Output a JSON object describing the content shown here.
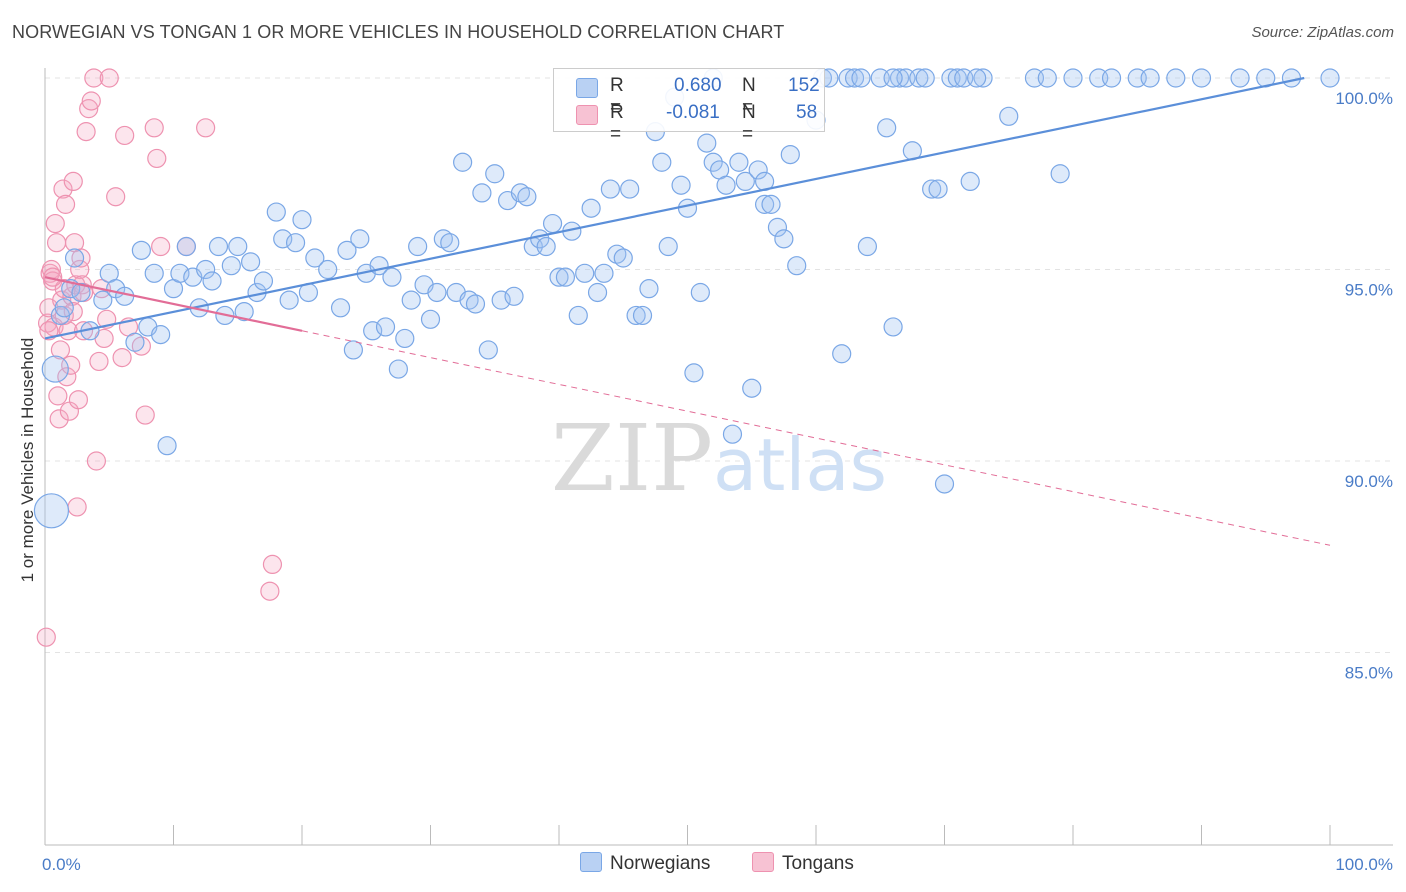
{
  "title": "NORWEGIAN VS TONGAN 1 OR MORE VEHICLES IN HOUSEHOLD CORRELATION CHART",
  "source": "Source: ZipAtlas.com",
  "watermark": {
    "zip": "ZIP",
    "atlas": "atlas"
  },
  "legend": {
    "r_label": "R =",
    "n_label": "N =",
    "rows": [
      {
        "name": "Norwegians",
        "r": "0.680",
        "n": "152",
        "color": "#7aa7e6",
        "fill": "#b9d1f3"
      },
      {
        "name": "Tongans",
        "r": "-0.081",
        "n": "58",
        "color": "#ee92b0",
        "fill": "#f7c2d3"
      }
    ]
  },
  "chart_data": {
    "type": "scatter",
    "xlabel": "",
    "ylabel": "1 or more Vehicles in Household",
    "x_tick_labels": [
      "0.0%",
      "100.0%"
    ],
    "y_tick_labels": [
      "100.0%",
      "95.0%",
      "90.0%",
      "85.0%"
    ],
    "y_ticks": [
      100,
      95,
      90,
      85
    ],
    "xlim": [
      0,
      100
    ],
    "ylim": [
      80.5,
      100.5
    ],
    "grid": true,
    "series": [
      {
        "name": "Norwegians",
        "color": "#5b8fd9",
        "trend": {
          "x0": 0.0,
          "y0": 93.2,
          "x1": 98.0,
          "y1": 100.0,
          "dashed_to": null
        },
        "points": [
          [
            0.5,
            88.7,
            3
          ],
          [
            0.8,
            92.4,
            2
          ],
          [
            1.2,
            93.8,
            1
          ],
          [
            1.5,
            94.0,
            1
          ],
          [
            2.0,
            94.5,
            1
          ],
          [
            2.3,
            95.3,
            1
          ],
          [
            2.8,
            94.4,
            1
          ],
          [
            3.5,
            93.4,
            1
          ],
          [
            4.5,
            94.2,
            1
          ],
          [
            5.0,
            94.9,
            1
          ],
          [
            5.5,
            94.5,
            1
          ],
          [
            6.2,
            94.3,
            1
          ],
          [
            7.0,
            93.1,
            1
          ],
          [
            7.5,
            95.5,
            1
          ],
          [
            8.0,
            93.5,
            1
          ],
          [
            8.5,
            94.9,
            1
          ],
          [
            9.0,
            93.3,
            1
          ],
          [
            9.5,
            90.4,
            1
          ],
          [
            10.0,
            94.5,
            1
          ],
          [
            10.5,
            94.9,
            1
          ],
          [
            11.0,
            95.6,
            1
          ],
          [
            11.5,
            94.8,
            1
          ],
          [
            12.0,
            94.0,
            1
          ],
          [
            12.5,
            95.0,
            1
          ],
          [
            13.0,
            94.7,
            1
          ],
          [
            13.5,
            95.6,
            1
          ],
          [
            14.0,
            93.8,
            1
          ],
          [
            14.5,
            95.1,
            1
          ],
          [
            15.0,
            95.6,
            1
          ],
          [
            15.5,
            93.9,
            1
          ],
          [
            16.0,
            95.2,
            1
          ],
          [
            16.5,
            94.4,
            1
          ],
          [
            17.0,
            94.7,
            1
          ],
          [
            18.0,
            96.5,
            1
          ],
          [
            18.5,
            95.8,
            1
          ],
          [
            19.0,
            94.2,
            1
          ],
          [
            19.5,
            95.7,
            1
          ],
          [
            20.0,
            96.3,
            1
          ],
          [
            20.5,
            94.4,
            1
          ],
          [
            21.0,
            95.3,
            1
          ],
          [
            22.0,
            95.0,
            1
          ],
          [
            23.0,
            94.0,
            1
          ],
          [
            23.5,
            95.5,
            1
          ],
          [
            24.0,
            92.9,
            1
          ],
          [
            24.5,
            95.8,
            1
          ],
          [
            25.0,
            94.9,
            1
          ],
          [
            25.5,
            93.4,
            1
          ],
          [
            26.0,
            95.1,
            1
          ],
          [
            26.5,
            93.5,
            1
          ],
          [
            27.0,
            94.8,
            1
          ],
          [
            27.5,
            92.4,
            1
          ],
          [
            28.0,
            93.2,
            1
          ],
          [
            28.5,
            94.2,
            1
          ],
          [
            29.0,
            95.6,
            1
          ],
          [
            29.5,
            94.6,
            1
          ],
          [
            30.0,
            93.7,
            1
          ],
          [
            30.5,
            94.4,
            1
          ],
          [
            31.0,
            95.8,
            1
          ],
          [
            31.5,
            95.7,
            1
          ],
          [
            32.0,
            94.4,
            1
          ],
          [
            32.5,
            97.8,
            1
          ],
          [
            33.0,
            94.2,
            1
          ],
          [
            33.5,
            94.1,
            1
          ],
          [
            34.0,
            97.0,
            1
          ],
          [
            34.5,
            92.9,
            1
          ],
          [
            35.0,
            97.5,
            1
          ],
          [
            35.5,
            94.2,
            1
          ],
          [
            36.0,
            96.8,
            1
          ],
          [
            36.5,
            94.3,
            1
          ],
          [
            37.0,
            97.0,
            1
          ],
          [
            37.5,
            96.9,
            1
          ],
          [
            38.0,
            95.6,
            1
          ],
          [
            38.5,
            95.8,
            1
          ],
          [
            39.0,
            95.6,
            1
          ],
          [
            39.5,
            96.2,
            1
          ],
          [
            40.0,
            94.8,
            1
          ],
          [
            40.5,
            94.8,
            1
          ],
          [
            41.0,
            96.0,
            1
          ],
          [
            41.5,
            93.8,
            1
          ],
          [
            42.0,
            94.9,
            1
          ],
          [
            42.5,
            96.6,
            1
          ],
          [
            43.0,
            94.4,
            1
          ],
          [
            43.5,
            94.9,
            1
          ],
          [
            44.0,
            97.1,
            1
          ],
          [
            44.5,
            95.4,
            1
          ],
          [
            45.0,
            95.3,
            1
          ],
          [
            45.5,
            97.1,
            1
          ],
          [
            46.0,
            93.8,
            1
          ],
          [
            46.5,
            93.8,
            1
          ],
          [
            47.0,
            94.5,
            1
          ],
          [
            47.5,
            98.6,
            1
          ],
          [
            48.0,
            97.8,
            1
          ],
          [
            48.5,
            95.6,
            1
          ],
          [
            49.0,
            99.5,
            1
          ],
          [
            49.5,
            97.2,
            1
          ],
          [
            50.0,
            96.6,
            1
          ],
          [
            50.5,
            92.3,
            1
          ],
          [
            51.0,
            94.4,
            1
          ],
          [
            51.5,
            98.3,
            1
          ],
          [
            52.0,
            97.8,
            1
          ],
          [
            52.5,
            97.6,
            1
          ],
          [
            53.0,
            97.2,
            1
          ],
          [
            53.5,
            90.7,
            1
          ],
          [
            54.0,
            97.8,
            1
          ],
          [
            54.5,
            97.3,
            1
          ],
          [
            55.0,
            91.9,
            1
          ],
          [
            55.5,
            97.6,
            1
          ],
          [
            56.0,
            96.7,
            1
          ],
          [
            56.5,
            96.7,
            1
          ],
          [
            57.0,
            96.1,
            1
          ],
          [
            57.5,
            95.8,
            1
          ],
          [
            58.0,
            98.0,
            1
          ],
          [
            58.5,
            95.1,
            1
          ],
          [
            60.0,
            98.9,
            1
          ],
          [
            60.5,
            100.0,
            1
          ],
          [
            61.0,
            100.0,
            1
          ],
          [
            62.0,
            92.8,
            1
          ],
          [
            62.5,
            100.0,
            1
          ],
          [
            63.0,
            100.0,
            1
          ],
          [
            63.5,
            100.0,
            1
          ],
          [
            64.0,
            95.6,
            1
          ],
          [
            65.0,
            100.0,
            1
          ],
          [
            65.5,
            98.7,
            1
          ],
          [
            66.0,
            93.5,
            1
          ],
          [
            66.5,
            100.0,
            1
          ],
          [
            67.0,
            100.0,
            1
          ],
          [
            67.5,
            98.1,
            1
          ],
          [
            68.0,
            100.0,
            1
          ],
          [
            68.5,
            100.0,
            1
          ],
          [
            69.0,
            97.1,
            1
          ],
          [
            69.5,
            97.1,
            1
          ],
          [
            70.0,
            89.4,
            1
          ],
          [
            70.5,
            100.0,
            1
          ],
          [
            71.0,
            100.0,
            1
          ],
          [
            71.5,
            100.0,
            1
          ],
          [
            72.0,
            97.3,
            1
          ],
          [
            73.0,
            100.0,
            1
          ],
          [
            75.0,
            99.0,
            1
          ],
          [
            77.0,
            100.0,
            1
          ],
          [
            78.0,
            100.0,
            1
          ],
          [
            79.0,
            97.5,
            1
          ],
          [
            80.0,
            100.0,
            1
          ],
          [
            82.0,
            100.0,
            1
          ],
          [
            83.0,
            100.0,
            1
          ],
          [
            85.0,
            100.0,
            1
          ],
          [
            86.0,
            100.0,
            1
          ],
          [
            88.0,
            100.0,
            1
          ],
          [
            90.0,
            100.0,
            1
          ],
          [
            93.0,
            100.0,
            1
          ],
          [
            95.0,
            100.0,
            1
          ],
          [
            97.0,
            100.0,
            1
          ],
          [
            100.0,
            100.0,
            1
          ],
          [
            56.0,
            97.3,
            1
          ],
          [
            52.0,
            100.0,
            1
          ],
          [
            66.0,
            100.0,
            1
          ],
          [
            72.5,
            100.0,
            1
          ]
        ]
      },
      {
        "name": "Tongans",
        "color": "#e26d97",
        "trend": {
          "x0": 0.0,
          "y0": 94.8,
          "x1": 20.0,
          "y1": 93.4,
          "dashed_to": {
            "x": 100.0,
            "y": 87.8
          }
        },
        "points": [
          [
            0.1,
            85.4,
            1
          ],
          [
            0.2,
            93.6,
            1
          ],
          [
            0.3,
            94.0,
            1
          ],
          [
            0.4,
            94.9,
            1
          ],
          [
            0.5,
            95.0,
            1
          ],
          [
            0.6,
            94.7,
            1
          ],
          [
            0.7,
            93.5,
            1
          ],
          [
            0.8,
            96.2,
            1
          ],
          [
            0.9,
            95.7,
            1
          ],
          [
            1.0,
            91.7,
            1
          ],
          [
            1.1,
            91.1,
            1
          ],
          [
            1.2,
            92.9,
            1
          ],
          [
            1.3,
            94.2,
            1
          ],
          [
            1.4,
            97.1,
            1
          ],
          [
            1.5,
            94.5,
            1
          ],
          [
            1.6,
            96.7,
            1
          ],
          [
            1.7,
            92.2,
            1
          ],
          [
            1.8,
            93.4,
            1
          ],
          [
            1.9,
            91.3,
            1
          ],
          [
            2.0,
            92.5,
            1
          ],
          [
            2.1,
            94.3,
            1
          ],
          [
            2.2,
            97.3,
            1
          ],
          [
            2.3,
            95.7,
            1
          ],
          [
            2.4,
            94.6,
            1
          ],
          [
            2.5,
            88.8,
            1
          ],
          [
            2.6,
            91.6,
            1
          ],
          [
            2.7,
            95.0,
            1
          ],
          [
            2.8,
            95.3,
            1
          ],
          [
            2.9,
            94.6,
            1
          ],
          [
            3.0,
            93.4,
            1
          ],
          [
            3.2,
            98.6,
            1
          ],
          [
            3.4,
            99.2,
            1
          ],
          [
            3.6,
            99.4,
            1
          ],
          [
            3.8,
            100.0,
            1
          ],
          [
            4.0,
            90.0,
            1
          ],
          [
            4.2,
            92.6,
            1
          ],
          [
            4.4,
            94.5,
            1
          ],
          [
            4.6,
            93.2,
            1
          ],
          [
            4.8,
            93.7,
            1
          ],
          [
            5.0,
            100.0,
            1
          ],
          [
            5.5,
            96.9,
            1
          ],
          [
            6.0,
            92.7,
            1
          ],
          [
            6.2,
            98.5,
            1
          ],
          [
            6.5,
            93.5,
            1
          ],
          [
            7.5,
            93.0,
            1
          ],
          [
            7.8,
            91.2,
            1
          ],
          [
            8.5,
            98.7,
            1
          ],
          [
            8.7,
            97.9,
            1
          ],
          [
            9.0,
            95.6,
            1
          ],
          [
            11.0,
            95.6,
            1
          ],
          [
            12.5,
            98.7,
            1
          ],
          [
            17.5,
            86.6,
            1
          ],
          [
            17.7,
            87.3,
            1
          ],
          [
            0.3,
            93.4,
            1
          ],
          [
            1.5,
            93.8,
            1
          ],
          [
            3.0,
            94.4,
            1
          ],
          [
            2.2,
            93.9,
            1
          ],
          [
            0.6,
            94.8,
            1
          ]
        ]
      }
    ]
  }
}
